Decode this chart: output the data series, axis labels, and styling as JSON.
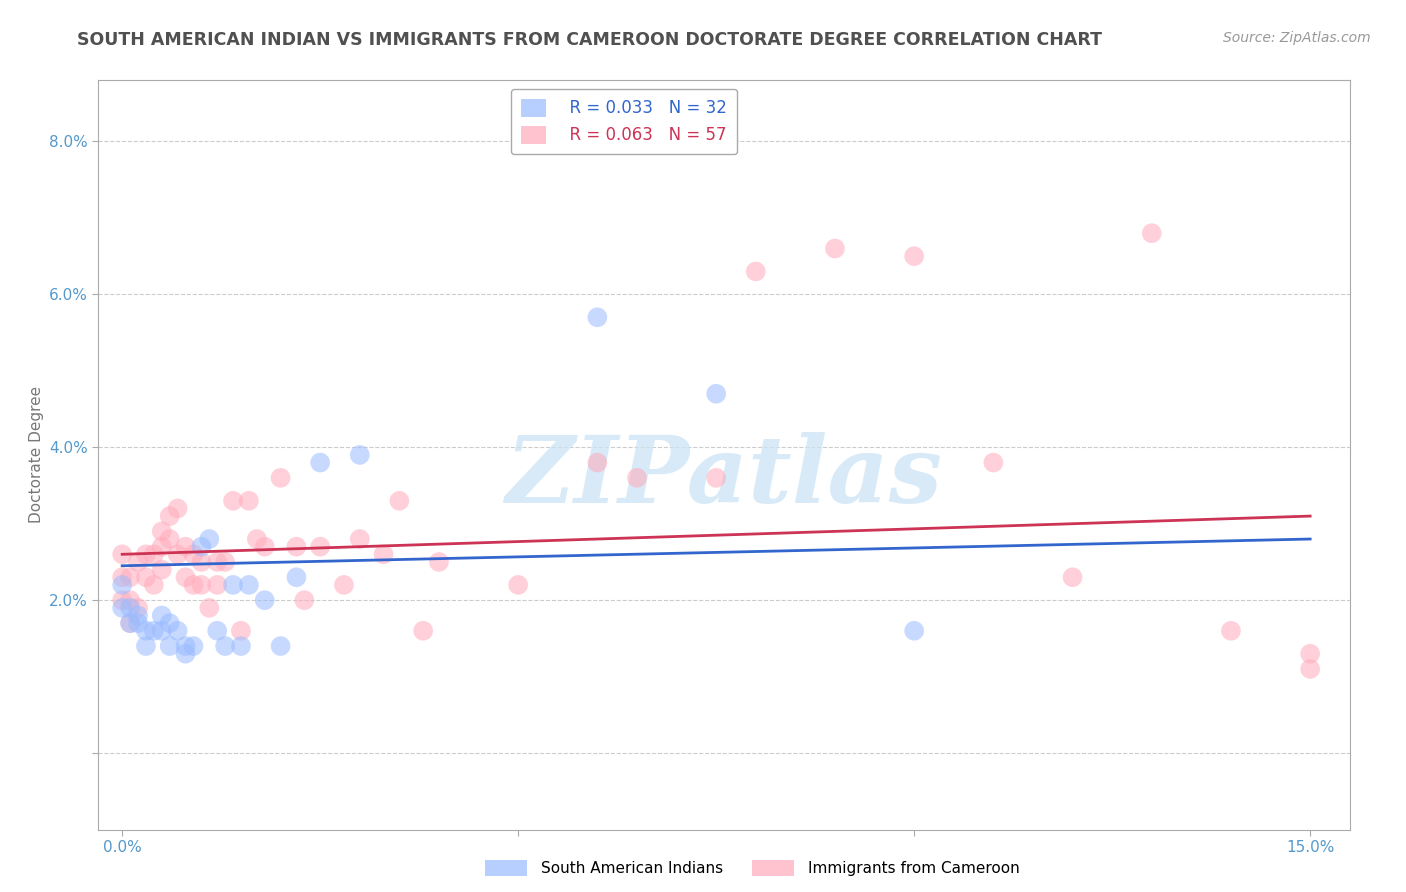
{
  "title": "SOUTH AMERICAN INDIAN VS IMMIGRANTS FROM CAMEROON DOCTORATE DEGREE CORRELATION CHART",
  "source_text": "Source: ZipAtlas.com",
  "ylabel": "Doctorate Degree",
  "xlabel": "",
  "xlim": [
    -0.003,
    0.155
  ],
  "ylim": [
    -0.01,
    0.088
  ],
  "xticks": [
    0.0,
    0.15
  ],
  "xticklabels": [
    "0.0%",
    "15.0%"
  ],
  "yticks": [
    0.0,
    0.02,
    0.04,
    0.06,
    0.08
  ],
  "yticklabels": [
    "",
    "2.0%",
    "4.0%",
    "6.0%",
    "8.0%"
  ],
  "grid_color": "#cccccc",
  "background_color": "#ffffff",
  "title_color": "#505050",
  "title_fontsize": 12.5,
  "label_fontsize": 11,
  "tick_fontsize": 11,
  "source_fontsize": 10,
  "legend_R1": "R = 0.033",
  "legend_N1": "N = 32",
  "legend_R2": "R = 0.063",
  "legend_N2": "N = 57",
  "blue_color": "#99bbff",
  "pink_color": "#ffaabb",
  "blue_line_color": "#3366cc",
  "pink_line_color": "#cc3355",
  "watermark_text": "ZIPatlas",
  "blue_scatter_x": [
    0.0,
    0.0,
    0.001,
    0.001,
    0.002,
    0.002,
    0.003,
    0.003,
    0.004,
    0.005,
    0.005,
    0.006,
    0.006,
    0.007,
    0.008,
    0.008,
    0.009,
    0.01,
    0.011,
    0.012,
    0.013,
    0.014,
    0.015,
    0.016,
    0.018,
    0.02,
    0.022,
    0.025,
    0.03,
    0.06,
    0.075,
    0.1
  ],
  "blue_scatter_y": [
    0.022,
    0.019,
    0.019,
    0.017,
    0.018,
    0.017,
    0.016,
    0.014,
    0.016,
    0.018,
    0.016,
    0.017,
    0.014,
    0.016,
    0.014,
    0.013,
    0.014,
    0.027,
    0.028,
    0.016,
    0.014,
    0.022,
    0.014,
    0.022,
    0.02,
    0.014,
    0.023,
    0.038,
    0.039,
    0.057,
    0.047,
    0.016
  ],
  "pink_scatter_x": [
    0.0,
    0.0,
    0.0,
    0.001,
    0.001,
    0.001,
    0.002,
    0.002,
    0.003,
    0.003,
    0.004,
    0.004,
    0.005,
    0.005,
    0.005,
    0.006,
    0.006,
    0.007,
    0.007,
    0.008,
    0.008,
    0.009,
    0.009,
    0.01,
    0.01,
    0.011,
    0.012,
    0.012,
    0.013,
    0.014,
    0.015,
    0.016,
    0.017,
    0.018,
    0.02,
    0.022,
    0.023,
    0.025,
    0.028,
    0.03,
    0.033,
    0.035,
    0.038,
    0.04,
    0.05,
    0.06,
    0.065,
    0.075,
    0.08,
    0.09,
    0.1,
    0.11,
    0.12,
    0.13,
    0.14,
    0.15,
    0.15
  ],
  "pink_scatter_y": [
    0.026,
    0.023,
    0.02,
    0.023,
    0.02,
    0.017,
    0.025,
    0.019,
    0.026,
    0.023,
    0.026,
    0.022,
    0.029,
    0.027,
    0.024,
    0.031,
    0.028,
    0.032,
    0.026,
    0.027,
    0.023,
    0.026,
    0.022,
    0.025,
    0.022,
    0.019,
    0.025,
    0.022,
    0.025,
    0.033,
    0.016,
    0.033,
    0.028,
    0.027,
    0.036,
    0.027,
    0.02,
    0.027,
    0.022,
    0.028,
    0.026,
    0.033,
    0.016,
    0.025,
    0.022,
    0.038,
    0.036,
    0.036,
    0.063,
    0.066,
    0.065,
    0.038,
    0.023,
    0.068,
    0.016,
    0.013,
    0.011
  ]
}
